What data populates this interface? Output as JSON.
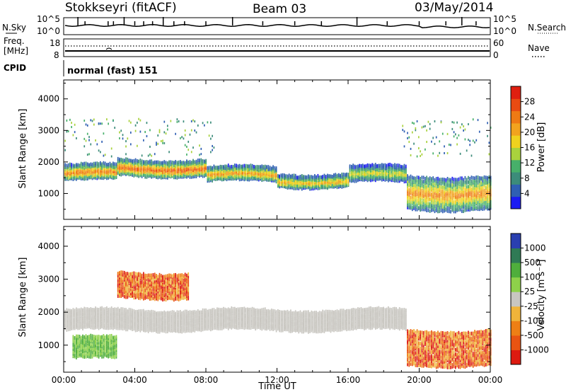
{
  "header": {
    "station": "Stokkseyri (fitACF)",
    "beam": "Beam 03",
    "date": "03/May/2014"
  },
  "top_panels": {
    "nsky_label": "N.Sky",
    "nsky_tick_high": "10^5",
    "nsky_tick_low": "10^0",
    "nsearch_label": "N.Search",
    "nsearch_tick_high": "10^5",
    "nsearch_tick_low": "10^0",
    "freq_label": "Freq.",
    "freq_unit": "[MHz]",
    "freq_tick_high": "18",
    "freq_tick_low": "8",
    "nave_label": "Nave",
    "nave_tick_high": "60",
    "nave_tick_low": "0",
    "cpid_label": "CPID",
    "cpid_value": "normal (fast) 151"
  },
  "x_axis": {
    "label": "Time UT",
    "ticks": [
      "00:00",
      "04:00",
      "08:00",
      "12:00",
      "16:00",
      "20:00",
      "00:00"
    ]
  },
  "power_panel": {
    "ylabel": "Slant Range [km]",
    "yticks": [
      "1000",
      "2000",
      "3000",
      "4000"
    ],
    "colorbar_label": "Power [dB]",
    "colorbar_ticks": [
      "4",
      "8",
      "12",
      "16",
      "20",
      "24",
      "28"
    ],
    "colors": [
      "#1b1bf2",
      "#2f5fb3",
      "#3c8c7a",
      "#47b06a",
      "#a9d23d",
      "#f0d21e",
      "#f2a31e",
      "#ee7a14",
      "#e84b12",
      "#df1f10"
    ]
  },
  "velocity_panel": {
    "ylabel": "Slant Range [km]",
    "yticks": [
      "1000",
      "2000",
      "3000",
      "4000"
    ],
    "colorbar_label": "Velocity [m s⁻¹]",
    "colorbar_ticks": [
      "1000",
      "500",
      "100",
      "25",
      "-25",
      "-100",
      "-500",
      "-1000"
    ],
    "colors": [
      "#2a3fb0",
      "#2f7a55",
      "#4fae3c",
      "#8ed14a",
      "#c8c6c0",
      "#f0b43a",
      "#ee7f15",
      "#e85412",
      "#dd1a10"
    ]
  },
  "chart_data": [
    {
      "type": "heatmap",
      "title": "Power",
      "x_range_hours": [
        0,
        24
      ],
      "y_range_km": [
        180,
        4500
      ],
      "bands": [
        {
          "t0": 0.0,
          "t1": 3.0,
          "center_km": 1650,
          "halfwidth_km": 220,
          "peak_db": 26
        },
        {
          "t0": 3.0,
          "t1": 8.0,
          "center_km": 1800,
          "halfwidth_km": 230,
          "peak_db": 28
        },
        {
          "t0": 8.0,
          "t1": 12.0,
          "center_km": 1600,
          "halfwidth_km": 200,
          "peak_db": 24
        },
        {
          "t0": 12.0,
          "t1": 16.0,
          "center_km": 1400,
          "halfwidth_km": 180,
          "peak_db": 22
        },
        {
          "t0": 16.0,
          "t1": 19.3,
          "center_km": 1600,
          "halfwidth_km": 230,
          "peak_db": 18
        },
        {
          "t0": 19.3,
          "t1": 24.0,
          "center_km": 1000,
          "halfwidth_km": 500,
          "peak_db": 24
        }
      ]
    },
    {
      "type": "heatmap",
      "title": "Velocity",
      "x_range_hours": [
        0,
        24
      ],
      "y_range_km": [
        180,
        4500
      ],
      "bands": [
        {
          "t0": 0.0,
          "t1": 19.3,
          "center_km": 1750,
          "halfwidth_km": 280,
          "velocity_ms": 0
        },
        {
          "t0": 0.5,
          "t1": 3.0,
          "center_km": 900,
          "halfwidth_km": 300,
          "velocity_ms": 200
        },
        {
          "t0": 3.0,
          "t1": 7.0,
          "center_km": 2800,
          "halfwidth_km": 350,
          "velocity_ms": -200
        },
        {
          "t0": 19.3,
          "t1": 24.0,
          "center_km": 900,
          "halfwidth_km": 500,
          "velocity_ms": -500
        }
      ]
    }
  ]
}
